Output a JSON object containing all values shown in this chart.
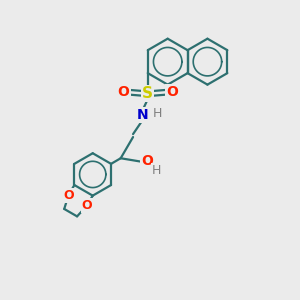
{
  "bg_color": "#ebebeb",
  "bond_color": "#2d7070",
  "bond_width": 1.6,
  "S_color": "#cccc00",
  "O_color": "#ff2200",
  "N_color": "#0000cc",
  "H_color": "#808080",
  "figsize": [
    3.0,
    3.0
  ],
  "dpi": 100,
  "xlim": [
    0,
    10
  ],
  "ylim": [
    0,
    10
  ]
}
